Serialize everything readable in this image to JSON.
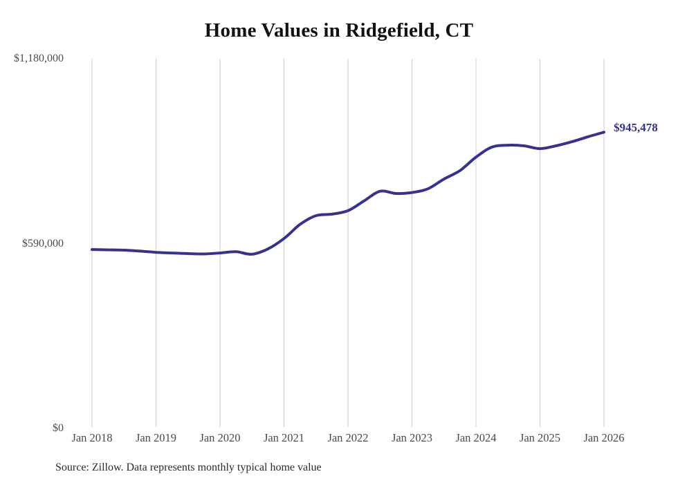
{
  "title": "Home Values in Ridgefield, CT",
  "source": {
    "text": "Source: Zillow. Data represents monthly typical home value"
  },
  "chart_data": {
    "type": "line",
    "title": "Home Values in Ridgefield, CT",
    "series_name": "Typical home value (monthly)",
    "x": [
      "2018-01",
      "2018-04",
      "2018-07",
      "2018-10",
      "2019-01",
      "2019-04",
      "2019-07",
      "2019-10",
      "2020-01",
      "2020-04",
      "2020-07",
      "2020-10",
      "2021-01",
      "2021-04",
      "2021-07",
      "2021-10",
      "2022-01",
      "2022-04",
      "2022-07",
      "2022-10",
      "2023-01",
      "2023-04",
      "2023-07",
      "2023-10",
      "2024-01",
      "2024-04",
      "2024-07",
      "2024-10",
      "2025-01",
      "2025-04",
      "2025-07",
      "2025-10",
      "2026-01"
    ],
    "values": [
      571000,
      570000,
      569000,
      566000,
      562000,
      560000,
      558000,
      557000,
      560000,
      564000,
      556000,
      573000,
      606000,
      651000,
      679000,
      684000,
      695000,
      726000,
      757000,
      750000,
      753000,
      765000,
      796000,
      823000,
      866000,
      898000,
      904000,
      902000,
      893000,
      902000,
      915000,
      931000,
      945478
    ],
    "last_value": 945478,
    "end_label": "$945,478",
    "xticks": [
      "Jan 2018",
      "Jan 2019",
      "Jan 2020",
      "Jan 2021",
      "Jan 2022",
      "Jan 2023",
      "Jan 2024",
      "Jan 2025",
      "Jan 2026"
    ],
    "yticks": [
      {
        "label": "$1,180,000",
        "value": 1180000
      },
      {
        "label": "$590,000",
        "value": 590000
      },
      {
        "label": "$0",
        "value": 0
      }
    ],
    "ylim": [
      0,
      1180000
    ],
    "grid": "vertical-only",
    "legend": "none",
    "line_color": "#37318f",
    "grid_color": "#cccccc",
    "end_label_color": "#34308e"
  }
}
